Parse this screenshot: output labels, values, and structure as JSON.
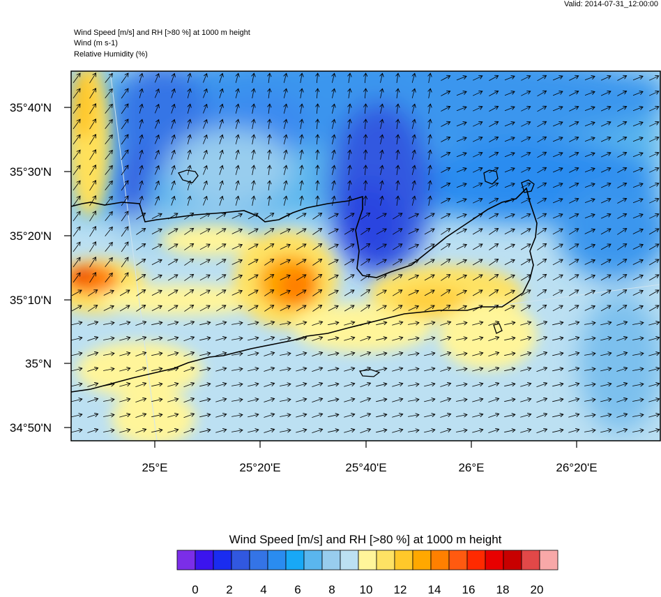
{
  "header": {
    "valid": "Valid: 2014-07-31_12:00:00",
    "line1": "Wind Speed [m/s] and RH [>80 %] at 1000 m height",
    "line2": "Wind   (m s-1)",
    "line3": "Relative Humidity   (%)"
  },
  "axes": {
    "lat_labels": [
      "35°40'N",
      "35°30'N",
      "35°20'N",
      "35°10'N",
      "35°N",
      "34°50'N"
    ],
    "lon_labels": [
      "25°E",
      "25°20'E",
      "25°40'E",
      "26°E",
      "26°20'E"
    ]
  },
  "colorbar": {
    "title": "Wind Speed [m/s] and RH [>80 %] at 1000 m height",
    "labels": [
      "0",
      "2",
      "4",
      "6",
      "8",
      "10",
      "12",
      "14",
      "16",
      "18",
      "20"
    ],
    "colors": [
      "#7b2ee8",
      "#3b14ee",
      "#1a2cf0",
      "#3158e0",
      "#3474e6",
      "#2a8cf0",
      "#18a8f6",
      "#5ab6ee",
      "#98cdee",
      "#bce0f2",
      "#fff59a",
      "#fee264",
      "#ffc82a",
      "#ffa800",
      "#ff8000",
      "#ff5a10",
      "#ff2a00",
      "#e80000",
      "#c80000",
      "#e24848",
      "#f8a8a8"
    ]
  },
  "legend_colors": {
    "land_outline": "#000000",
    "arrows": "#000000"
  }
}
